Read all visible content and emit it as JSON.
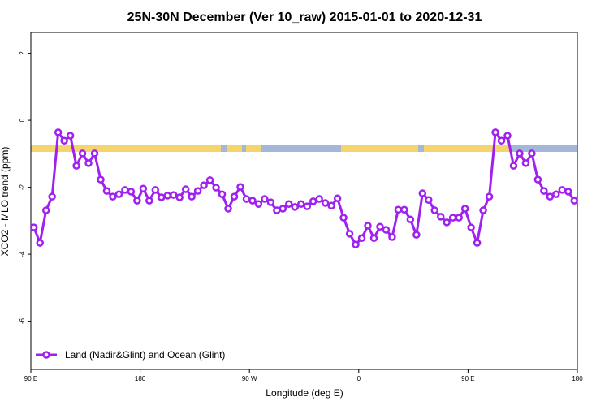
{
  "chart_data": {
    "type": "line",
    "title": "25N-30N December (Ver 10_raw)   2015-01-01 to 2020-12-31",
    "x_label": "Longitude (deg E)",
    "y_label": "XCO2 - MLO trend (ppm)",
    "x": [
      92.5,
      97.5,
      102.5,
      107.5,
      112.5,
      117.5,
      122.5,
      127.5,
      132.5,
      137.5,
      142.5,
      147.5,
      152.5,
      157.5,
      162.5,
      167.5,
      172.5,
      177.5,
      182.5,
      187.5,
      192.5,
      197.5,
      202.5,
      207.5,
      212.5,
      217.5,
      222.5,
      227.5,
      232.5,
      237.5,
      242.5,
      247.5,
      252.5,
      257.5,
      262.5,
      267.5,
      272.5,
      277.5,
      282.5,
      287.5,
      292.5,
      297.5,
      302.5,
      307.5,
      312.5,
      317.5,
      322.5,
      327.5,
      332.5,
      337.5,
      342.5,
      347.5,
      352.5,
      357.5,
      362.5,
      367.5,
      372.5,
      377.5,
      382.5,
      387.5,
      392.5,
      397.5,
      402.5,
      407.5,
      412.5,
      417.5,
      422.5,
      427.5,
      432.5,
      437.5,
      442.5,
      447.5,
      452.5,
      457.5,
      462.5,
      467.5,
      472.5,
      477.5,
      482.5,
      487.5,
      492.5,
      497.5,
      502.5,
      507.5,
      512.5,
      517.5,
      522.5,
      527.5,
      532.5,
      537.5
    ],
    "series": [
      {
        "name": "Land (Nadir&Glint) and Ocean (Glint)",
        "color": "#a020f0",
        "values": [
          -3.2,
          -3.66,
          -2.69,
          -2.28,
          -0.36,
          -0.61,
          -0.46,
          -1.36,
          -0.99,
          -1.28,
          -0.99,
          -1.77,
          -2.11,
          -2.28,
          -2.21,
          -2.08,
          -2.13,
          -2.4,
          -2.04,
          -2.4,
          -2.08,
          -2.3,
          -2.25,
          -2.23,
          -2.3,
          -2.06,
          -2.28,
          -2.11,
          -1.94,
          -1.79,
          -2.01,
          -2.21,
          -2.64,
          -2.28,
          -1.99,
          -2.35,
          -2.4,
          -2.5,
          -2.35,
          -2.45,
          -2.69,
          -2.64,
          -2.5,
          -2.59,
          -2.5,
          -2.57,
          -2.42,
          -2.35,
          -2.47,
          -2.55,
          -2.33,
          -2.91,
          -3.39,
          -3.71,
          -3.52,
          -3.15,
          -3.52,
          -3.18,
          -3.27,
          -3.49,
          -2.67,
          -2.67,
          -2.96,
          -3.42,
          -2.18,
          -2.38,
          -2.69,
          -2.88,
          -3.05,
          -2.91,
          -2.91,
          -2.64,
          -3.2,
          -3.66,
          -2.69,
          -2.28,
          -0.36,
          -0.61,
          -0.46,
          -1.36,
          -0.99,
          -1.28,
          -0.99,
          -1.77,
          -2.11,
          -2.28,
          -2.21,
          -2.08,
          -2.13,
          -2.4
        ]
      }
    ],
    "xlim": [
      90,
      540
    ],
    "xticks": [
      {
        "value": 90,
        "label": "90 E"
      },
      180,
      {
        "value": 270,
        "label": "90 W"
      },
      {
        "value": 360,
        "label": "0"
      },
      {
        "value": 450,
        "label": "90 E"
      },
      {
        "value": 540,
        "label": "180"
      }
    ],
    "ylim": [
      -7.44,
      2.62
    ],
    "yticks": [
      2,
      0,
      -2,
      -4,
      -6
    ],
    "legend": "bottomleft"
  }
}
